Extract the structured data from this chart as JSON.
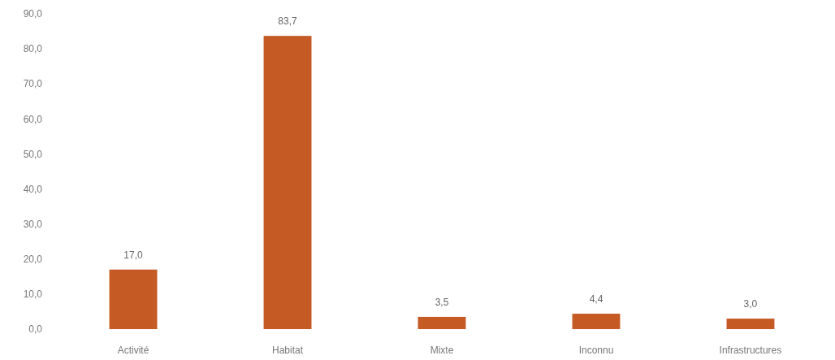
{
  "chart_data": {
    "type": "bar",
    "categories": [
      "Activité",
      "Habitat",
      "Mixte",
      "Inconnu",
      "Infrastructures"
    ],
    "values": [
      17.0,
      83.7,
      3.5,
      4.4,
      3.0
    ],
    "value_labels": [
      "17,0",
      "83,7",
      "3,5",
      "4,4",
      "3,0"
    ],
    "color": "#c55a24",
    "ylim": [
      0,
      90
    ],
    "yticks": [
      {
        "value": 0,
        "label": "0,0"
      },
      {
        "value": 10,
        "label": "10,0"
      },
      {
        "value": 20,
        "label": "20,0"
      },
      {
        "value": 30,
        "label": "30,0"
      },
      {
        "value": 40,
        "label": "40,0"
      },
      {
        "value": 50,
        "label": "50,0"
      },
      {
        "value": 60,
        "label": "60,0"
      },
      {
        "value": 70,
        "label": "70,0"
      },
      {
        "value": 80,
        "label": "80,0"
      },
      {
        "value": 90,
        "label": "90,0"
      }
    ],
    "grid": false
  }
}
